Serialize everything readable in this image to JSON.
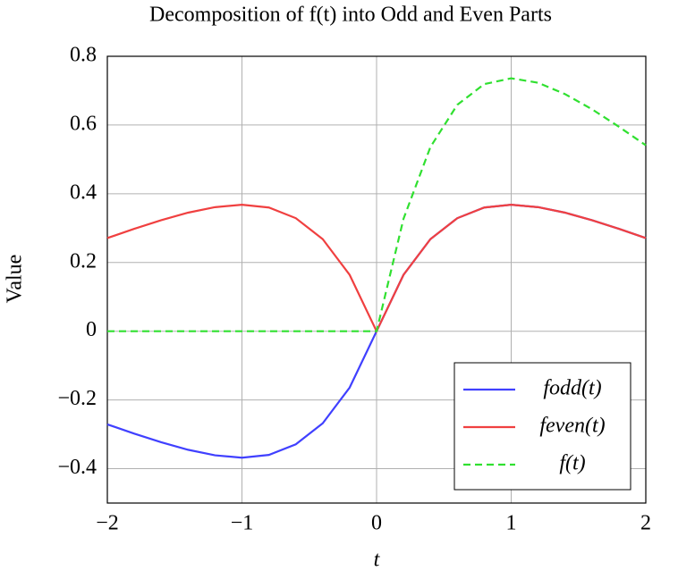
{
  "chart_data": {
    "type": "line",
    "title": "Decomposition of f(t) into Odd and Even Parts",
    "x_label": "t",
    "y_label": "Value",
    "x": [
      -2,
      -1.8,
      -1.6,
      -1.4,
      -1.2,
      -1,
      -0.8,
      -0.6,
      -0.4,
      -0.2,
      0,
      0.2,
      0.4,
      0.6,
      0.8,
      1,
      1.2,
      1.4,
      1.6,
      1.8,
      2
    ],
    "series": [
      {
        "name": "fodd(t)",
        "color": "#4040ff",
        "dash": false,
        "values": [
          -0.271,
          -0.298,
          -0.323,
          -0.345,
          -0.361,
          -0.368,
          -0.36,
          -0.329,
          -0.268,
          -0.164,
          0,
          0.164,
          0.268,
          0.329,
          0.36,
          0.368,
          0.361,
          0.345,
          0.323,
          0.298,
          0.271
        ]
      },
      {
        "name": "feven(t)",
        "color": "#f04040",
        "dash": false,
        "values": [
          0.271,
          0.298,
          0.323,
          0.345,
          0.361,
          0.368,
          0.36,
          0.329,
          0.268,
          0.164,
          0,
          0.164,
          0.268,
          0.329,
          0.36,
          0.368,
          0.361,
          0.345,
          0.323,
          0.298,
          0.271
        ]
      },
      {
        "name": "f(t)",
        "color": "#30e030",
        "dash": true,
        "values": [
          0,
          0,
          0,
          0,
          0,
          0,
          0,
          0,
          0,
          0,
          0,
          0.327,
          0.536,
          0.659,
          0.719,
          0.736,
          0.723,
          0.69,
          0.646,
          0.595,
          0.541
        ]
      }
    ],
    "xlim": [
      -2,
      2
    ],
    "xticks": [
      {
        "value": -2,
        "label": "−2"
      },
      {
        "value": -1,
        "label": "−1"
      },
      0,
      1,
      2
    ],
    "ylim": [
      -0.5,
      0.8
    ],
    "yticks": [
      {
        "value": -0.4,
        "label": "−0.4"
      },
      {
        "value": -0.2,
        "label": "−0.2"
      },
      0,
      0.2,
      0.4,
      0.6,
      0.8
    ],
    "grid": true,
    "legend": "lower right"
  }
}
